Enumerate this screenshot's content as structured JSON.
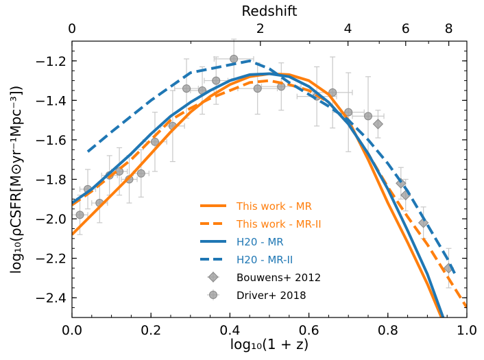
{
  "chart_data": {
    "type": "line",
    "xlabel": "log₁₀(1 + z)",
    "ylabel": "log₁₀(ρCSFR[M⊙yr⁻¹Mpc⁻³])",
    "top_axis_label": "Redshift",
    "xlim": [
      0.0,
      1.0
    ],
    "ylim": [
      -2.5,
      -1.1
    ],
    "x_ticks": [
      {
        "value": 0.0,
        "label": "0.0"
      },
      {
        "value": 0.2,
        "label": "0.2"
      },
      {
        "value": 0.4,
        "label": "0.4"
      },
      {
        "value": 0.6,
        "label": "0.6"
      },
      {
        "value": 0.8,
        "label": "0.8"
      },
      {
        "value": 1.0,
        "label": "1.0"
      }
    ],
    "y_ticks": [
      {
        "value": -2.4,
        "label": "−2.4"
      },
      {
        "value": -2.2,
        "label": "−2.2"
      },
      {
        "value": -2.0,
        "label": "−2.0"
      },
      {
        "value": -1.8,
        "label": "−1.8"
      },
      {
        "value": -1.6,
        "label": "−1.6"
      },
      {
        "value": -1.4,
        "label": "−1.4"
      },
      {
        "value": -1.2,
        "label": "−1.2"
      }
    ],
    "top_ticks": [
      {
        "z": 0,
        "label": "0"
      },
      {
        "z": 2,
        "label": "2"
      },
      {
        "z": 4,
        "label": "4"
      },
      {
        "z": 6,
        "label": "6"
      },
      {
        "z": 8,
        "label": "8"
      }
    ],
    "legend_position": "lower-center",
    "series": [
      {
        "name": "This work - MR",
        "style": "solid",
        "color": "#ff7f0e",
        "points": [
          [
            0.0,
            -2.08
          ],
          [
            0.05,
            -1.98
          ],
          [
            0.1,
            -1.88
          ],
          [
            0.15,
            -1.78
          ],
          [
            0.2,
            -1.67
          ],
          [
            0.25,
            -1.56
          ],
          [
            0.3,
            -1.46
          ],
          [
            0.35,
            -1.38
          ],
          [
            0.4,
            -1.32
          ],
          [
            0.45,
            -1.28
          ],
          [
            0.5,
            -1.265
          ],
          [
            0.55,
            -1.27
          ],
          [
            0.6,
            -1.3
          ],
          [
            0.65,
            -1.37
          ],
          [
            0.7,
            -1.5
          ],
          [
            0.75,
            -1.7
          ],
          [
            0.8,
            -1.92
          ],
          [
            0.85,
            -2.12
          ],
          [
            0.9,
            -2.33
          ],
          [
            0.94,
            -2.52
          ]
        ]
      },
      {
        "name": "This work - MR-II",
        "style": "dashed",
        "color": "#ff7f0e",
        "points": [
          [
            0.0,
            -1.93
          ],
          [
            0.05,
            -1.86
          ],
          [
            0.1,
            -1.78
          ],
          [
            0.15,
            -1.7
          ],
          [
            0.2,
            -1.6
          ],
          [
            0.25,
            -1.5
          ],
          [
            0.3,
            -1.44
          ],
          [
            0.35,
            -1.39
          ],
          [
            0.4,
            -1.35
          ],
          [
            0.45,
            -1.31
          ],
          [
            0.5,
            -1.3
          ],
          [
            0.55,
            -1.32
          ],
          [
            0.6,
            -1.35
          ],
          [
            0.65,
            -1.41
          ],
          [
            0.7,
            -1.52
          ],
          [
            0.75,
            -1.67
          ],
          [
            0.8,
            -1.84
          ],
          [
            0.85,
            -1.99
          ],
          [
            0.9,
            -2.13
          ],
          [
            0.95,
            -2.29
          ],
          [
            1.0,
            -2.45
          ]
        ]
      },
      {
        "name": "H20 - MR",
        "style": "solid",
        "color": "#1f77b4",
        "points": [
          [
            0.0,
            -1.92
          ],
          [
            0.05,
            -1.85
          ],
          [
            0.1,
            -1.76
          ],
          [
            0.15,
            -1.67
          ],
          [
            0.2,
            -1.57
          ],
          [
            0.25,
            -1.48
          ],
          [
            0.3,
            -1.41
          ],
          [
            0.35,
            -1.35
          ],
          [
            0.4,
            -1.3
          ],
          [
            0.45,
            -1.27
          ],
          [
            0.5,
            -1.265
          ],
          [
            0.55,
            -1.28
          ],
          [
            0.6,
            -1.33
          ],
          [
            0.65,
            -1.41
          ],
          [
            0.7,
            -1.52
          ],
          [
            0.75,
            -1.67
          ],
          [
            0.8,
            -1.85
          ],
          [
            0.85,
            -2.06
          ],
          [
            0.9,
            -2.28
          ],
          [
            0.94,
            -2.5
          ]
        ]
      },
      {
        "name": "H20 - MR-II",
        "style": "dashed",
        "color": "#1f77b4",
        "points": [
          [
            0.04,
            -1.66
          ],
          [
            0.1,
            -1.56
          ],
          [
            0.15,
            -1.48
          ],
          [
            0.2,
            -1.4
          ],
          [
            0.25,
            -1.33
          ],
          [
            0.3,
            -1.26
          ],
          [
            0.35,
            -1.24
          ],
          [
            0.4,
            -1.22
          ],
          [
            0.45,
            -1.2
          ],
          [
            0.5,
            -1.24
          ],
          [
            0.55,
            -1.31
          ],
          [
            0.6,
            -1.37
          ],
          [
            0.65,
            -1.43
          ],
          [
            0.7,
            -1.5
          ],
          [
            0.75,
            -1.6
          ],
          [
            0.8,
            -1.72
          ],
          [
            0.85,
            -1.86
          ],
          [
            0.9,
            -2.03
          ],
          [
            0.95,
            -2.2
          ],
          [
            0.97,
            -2.28
          ]
        ]
      }
    ],
    "observations": [
      {
        "name": "Bouwens+ 2012",
        "marker": "diamond",
        "color": "#999999",
        "points": [
          [
            0.775,
            -1.52
          ],
          [
            0.833,
            -1.82
          ],
          [
            0.845,
            -1.88
          ],
          [
            0.89,
            -2.02
          ],
          [
            0.954,
            -2.25
          ]
        ],
        "yerr": [
          0.07,
          0.08,
          0.08,
          0.08,
          0.1
        ]
      },
      {
        "name": "Driver+ 2018",
        "marker": "circle",
        "color": "#999999",
        "points": [
          [
            0.02,
            -1.98
          ],
          [
            0.04,
            -1.85
          ],
          [
            0.07,
            -1.92
          ],
          [
            0.095,
            -1.78
          ],
          [
            0.12,
            -1.76
          ],
          [
            0.145,
            -1.8
          ],
          [
            0.175,
            -1.77
          ],
          [
            0.21,
            -1.61
          ],
          [
            0.255,
            -1.53
          ],
          [
            0.29,
            -1.34
          ],
          [
            0.33,
            -1.35
          ],
          [
            0.365,
            -1.3
          ],
          [
            0.41,
            -1.19
          ],
          [
            0.47,
            -1.34
          ],
          [
            0.53,
            -1.33
          ],
          [
            0.62,
            -1.38
          ],
          [
            0.66,
            -1.36
          ],
          [
            0.7,
            -1.46
          ],
          [
            0.75,
            -1.48
          ]
        ],
        "yerr": [
          0.1,
          0.1,
          0.1,
          0.1,
          0.12,
          0.12,
          0.12,
          0.15,
          0.18,
          0.15,
          0.12,
          0.12,
          0.1,
          0.13,
          0.12,
          0.15,
          0.18,
          0.2,
          0.2
        ],
        "xerr": [
          0.02,
          0.02,
          0.02,
          0.02,
          0.02,
          0.02,
          0.02,
          0.03,
          0.03,
          0.03,
          0.03,
          0.03,
          0.05,
          0.05,
          0.05,
          0.05,
          0.05,
          0.04,
          0.04
        ]
      }
    ]
  }
}
